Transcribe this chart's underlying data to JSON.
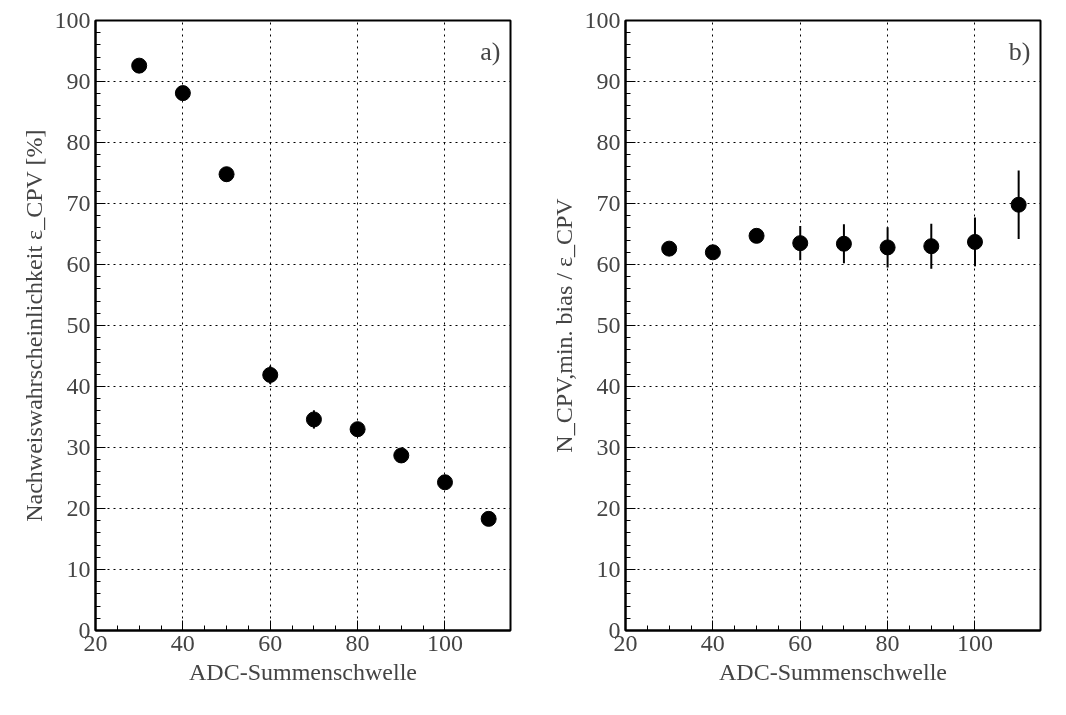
{
  "chart_data": [
    {
      "type": "scatter",
      "xlabel": "ADC-Summenschwelle",
      "ylabel": "Nachweiswahrscheinlichkeit ε_CPV [%]",
      "annotations": [
        "a)"
      ],
      "x": [
        30,
        40,
        50,
        60,
        70,
        80,
        90,
        100,
        110
      ],
      "series": [
        {
          "color": "#000000",
          "values": [
            92.6,
            88.1,
            74.8,
            41.9,
            34.6,
            33.0,
            28.7,
            24.3,
            18.3
          ],
          "errors": [
            null,
            null,
            1.2,
            1.5,
            1.5,
            1.2,
            1.2,
            0.8,
            0.9
          ]
        }
      ],
      "xlim": [
        20,
        115
      ],
      "xticks": [
        20,
        40,
        60,
        80,
        100
      ],
      "ylim": [
        0,
        100
      ],
      "yticks": [
        0,
        10,
        20,
        30,
        40,
        50,
        60,
        70,
        80,
        90,
        100
      ],
      "grid": true,
      "marker": "circle"
    },
    {
      "type": "scatter",
      "xlabel": "ADC-Summenschwelle",
      "ylabel": "N_CPV,min. bias / ε_CPV",
      "annotations": [
        "b)"
      ],
      "x": [
        30,
        40,
        50,
        60,
        70,
        80,
        90,
        100,
        110
      ],
      "series": [
        {
          "color": "#000000",
          "values": [
            62.6,
            62.0,
            64.7,
            63.5,
            63.4,
            62.8,
            63.0,
            63.7,
            69.8
          ],
          "errors": [
            null,
            null,
            1.0,
            2.8,
            3.2,
            3.3,
            3.7,
            4.0,
            5.6
          ]
        }
      ],
      "xlim": [
        20,
        115
      ],
      "xticks": [
        20,
        40,
        60,
        80,
        100
      ],
      "ylim": [
        0,
        100
      ],
      "yticks": [
        0,
        10,
        20,
        30,
        40,
        50,
        60,
        70,
        80,
        90,
        100
      ],
      "grid": true,
      "marker": "circle"
    }
  ]
}
